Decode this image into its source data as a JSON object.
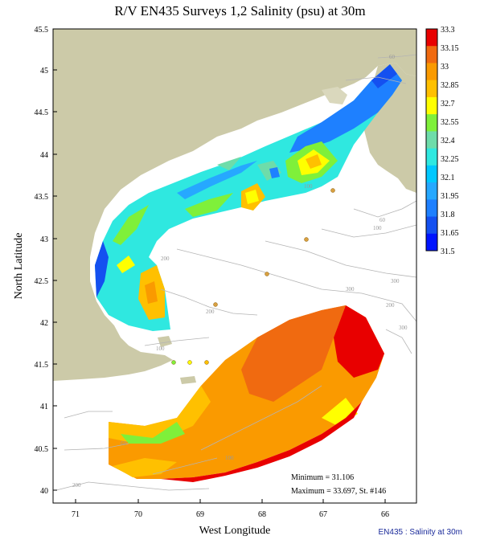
{
  "title": "R/V EN435 Surveys 1,2 Salinity (psu) at 30m",
  "x_axis_label": "West Longitude",
  "y_axis_label": "North Latitude",
  "x_ticks": [
    "71",
    "70",
    "69",
    "68",
    "67",
    "66"
  ],
  "y_ticks": [
    "45.5",
    "45",
    "44.5",
    "44",
    "43.5",
    "43",
    "42.5",
    "42",
    "41.5",
    "41",
    "40.5",
    "40"
  ],
  "colorbar_labels": [
    "33.3",
    "33.15",
    "33",
    "32.85",
    "32.7",
    "32.55",
    "32.4",
    "32.25",
    "32.1",
    "31.95",
    "31.8",
    "31.65",
    "31.5"
  ],
  "colorbar_colors": [
    "#e80000",
    "#f06a10",
    "#fa9a00",
    "#ffc000",
    "#ffff00",
    "#7ff03a",
    "#6edcaa",
    "#2fe8e0",
    "#00c8ff",
    "#26a8ff",
    "#1e80ff",
    "#1450f0",
    "#0014ff"
  ],
  "isobath_labels": [
    "60",
    "100",
    "200",
    "300",
    "60",
    "100",
    "200",
    "300",
    "100",
    "200",
    "100",
    "60",
    "300",
    "200"
  ],
  "stats": {
    "minimum": "Minimum = 31.106",
    "maximum": "Maximum = 33.697, St. #146"
  },
  "footer": "EN435 : Salinity at 30m",
  "colors": {
    "land": "#cccaa8",
    "isobath": "#b4b4b4",
    "station_marker": "#d9a040"
  }
}
